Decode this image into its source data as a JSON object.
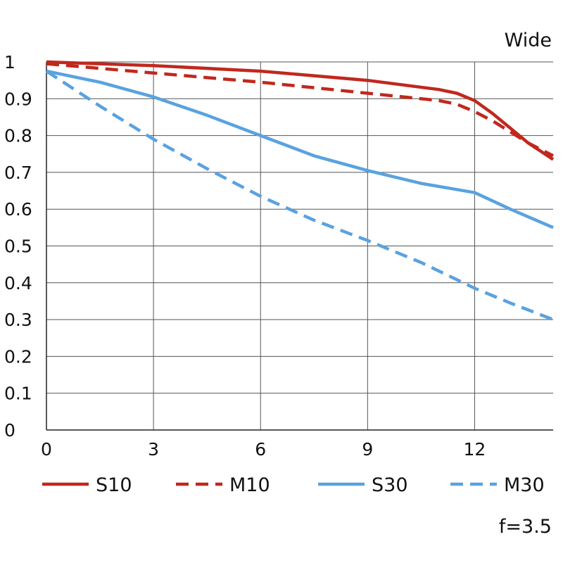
{
  "chart_data": {
    "type": "line",
    "title": "Wide",
    "note": "f=3.5",
    "xlabel": "",
    "ylabel": "",
    "xlim": [
      0,
      14.2
    ],
    "ylim": [
      0,
      1
    ],
    "xticks": [
      0,
      3,
      6,
      9,
      12
    ],
    "yticks": [
      0,
      0.1,
      0.2,
      0.3,
      0.4,
      0.5,
      0.6,
      0.7,
      0.8,
      0.9,
      1
    ],
    "ytick_labels": [
      "0",
      "0.1",
      "0.2",
      "0.3",
      "0.4",
      "0.5",
      "0.6",
      "0.7",
      "0.8",
      "0.9",
      "1"
    ],
    "grid": true,
    "legend_position": "bottom",
    "series": [
      {
        "name": "S10",
        "color": "#c0281e",
        "style": "solid",
        "x": [
          0,
          3,
          6,
          9,
          11,
          11.5,
          12,
          12.5,
          13,
          13.5,
          14.2
        ],
        "y": [
          1.0,
          0.99,
          0.975,
          0.95,
          0.925,
          0.915,
          0.895,
          0.86,
          0.82,
          0.78,
          0.735
        ]
      },
      {
        "name": "M10",
        "color": "#c0281e",
        "style": "dashed",
        "x": [
          0,
          3,
          6,
          9,
          11,
          11.5,
          12,
          12.5,
          13,
          13.5,
          14.2
        ],
        "y": [
          0.995,
          0.97,
          0.945,
          0.915,
          0.895,
          0.885,
          0.865,
          0.84,
          0.81,
          0.78,
          0.745
        ]
      },
      {
        "name": "S30",
        "color": "#5aa2e0",
        "style": "solid",
        "x": [
          0,
          1.5,
          3,
          4.5,
          6,
          7.5,
          9,
          10.5,
          12,
          13,
          14.2
        ],
        "y": [
          0.975,
          0.945,
          0.905,
          0.855,
          0.8,
          0.745,
          0.705,
          0.67,
          0.645,
          0.6,
          0.55
        ]
      },
      {
        "name": "M30",
        "color": "#5aa2e0",
        "style": "dashed",
        "x": [
          0,
          1.5,
          3,
          4.5,
          6,
          7.5,
          9,
          10.5,
          12,
          13,
          14.2
        ],
        "y": [
          0.975,
          0.88,
          0.79,
          0.71,
          0.635,
          0.57,
          0.515,
          0.455,
          0.385,
          0.345,
          0.3
        ]
      }
    ]
  }
}
